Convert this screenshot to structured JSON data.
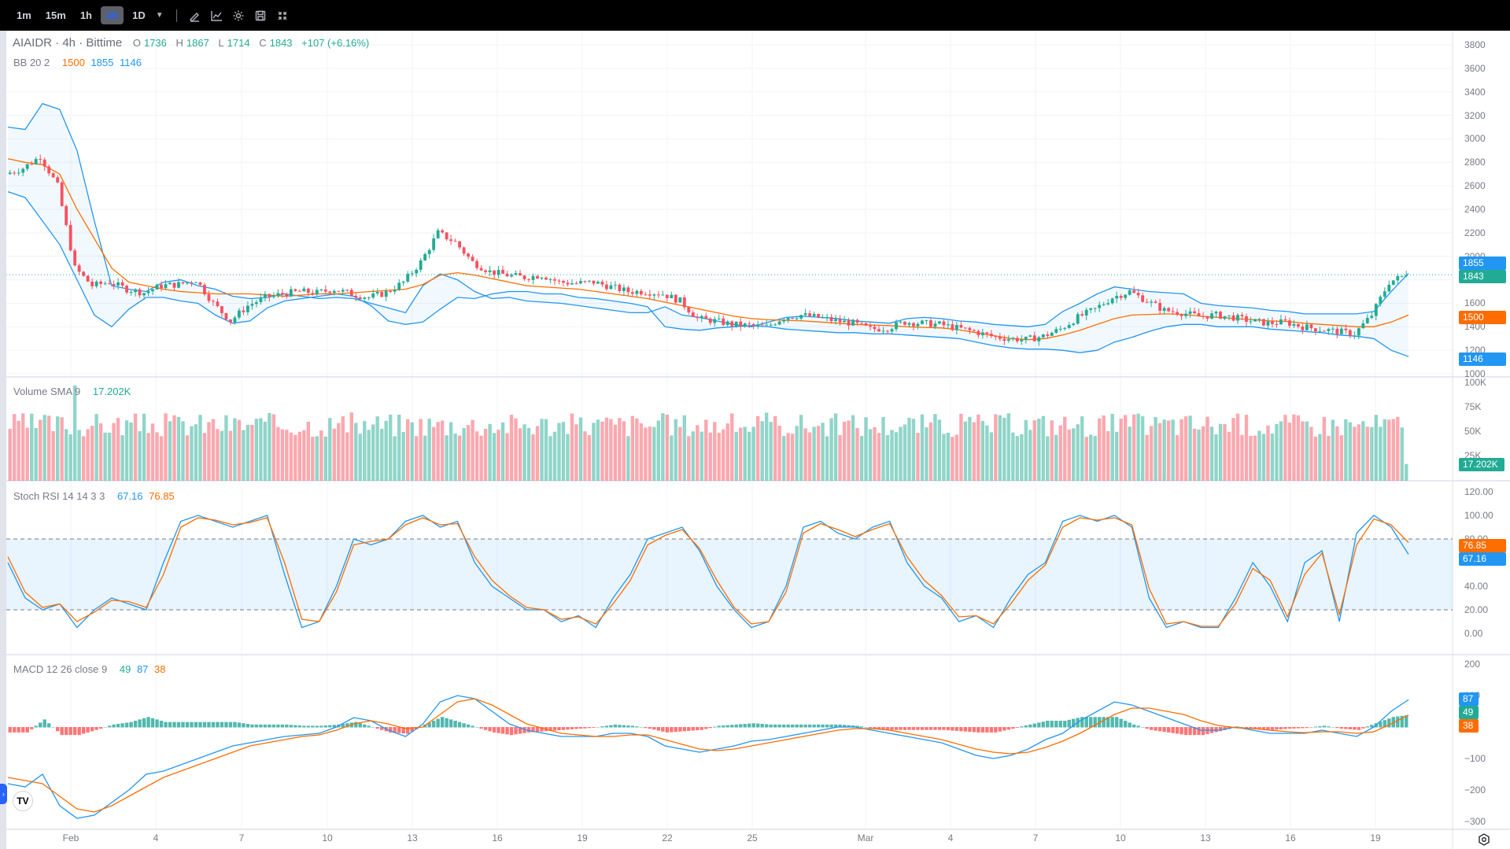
{
  "toolbar": {
    "timeframes": [
      "1m",
      "15m",
      "1h",
      "4h",
      "1D"
    ],
    "active_timeframe": "4h",
    "tools": [
      "draw-icon",
      "indicators-icon",
      "settings-icon",
      "save-icon",
      "collapse-icon"
    ]
  },
  "legend": {
    "symbol": "AIAIDR · 4h · Bittime",
    "o_label": "O",
    "o": "1736",
    "h_label": "H",
    "h": "1867",
    "l_label": "L",
    "l": "1714",
    "c_label": "C",
    "c": "1843",
    "change": "+107 (+6.16%)",
    "bb_title": "BB 20 2",
    "bb_basis": "1500",
    "bb_upper": "1855",
    "bb_lower": "1146",
    "vol_title": "Volume SMA 9",
    "vol_value": "17.202K",
    "stoch_title": "Stoch RSI 14 14 3 3",
    "stoch_k": "67.16",
    "stoch_d": "76.85",
    "macd_title": "MACD 12 26 close 9",
    "macd_hist": "49",
    "macd_line": "87",
    "macd_signal": "38"
  },
  "price_axis": [
    "3800",
    "3600",
    "3400",
    "3200",
    "3000",
    "2800",
    "2600",
    "2400",
    "2200",
    "2000",
    "1800",
    "1600",
    "1400",
    "1200",
    "1000"
  ],
  "volume_axis": [
    "100K",
    "75K",
    "50K",
    "25K"
  ],
  "stoch_axis": [
    "120.00",
    "100.00",
    "80.00",
    "60.00",
    "40.00",
    "20.00",
    "0.00"
  ],
  "macd_axis": [
    "200",
    "100",
    "0",
    "−100",
    "−200",
    "−300"
  ],
  "x_axis": [
    "Feb",
    "4",
    "7",
    "10",
    "13",
    "16",
    "19",
    "22",
    "25",
    "Mar",
    "4",
    "7",
    "10",
    "13",
    "16",
    "19"
  ],
  "price_labels": {
    "bb_upper": "1855",
    "close": "1843",
    "bb_basis": "1500",
    "bb_lower": "1146",
    "volume": "17.202K",
    "stoch_d": "76.85",
    "stoch_k": "67.16",
    "macd_line": "87",
    "macd_hist": "49",
    "macd_signal": "38"
  },
  "colors": {
    "up": "#22ab94",
    "down": "#f7525f",
    "bb": "#2196f3",
    "basis": "#ff6d00",
    "stoch_k": "#2196f3",
    "stoch_d": "#ff6d00"
  },
  "chart_data": [
    {
      "type": "candlestick",
      "title": "AIAIDR · 4h · Bittime",
      "ylim": [
        1000,
        3800
      ],
      "x": [
        "Feb",
        "4",
        "7",
        "10",
        "13",
        "16",
        "19",
        "22",
        "25",
        "Mar",
        "4",
        "7",
        "10",
        "13",
        "16",
        "19"
      ],
      "price_path": [
        2700,
        2750,
        2850,
        2600,
        1900,
        1750,
        1780,
        1720,
        1690,
        1750,
        1760,
        1800,
        1600,
        1450,
        1580,
        1650,
        1680,
        1700,
        1690,
        1720,
        1680,
        1650,
        1690,
        1780,
        1950,
        2200,
        2120,
        1950,
        1870,
        1840,
        1820,
        1840,
        1780,
        1770,
        1780,
        1740,
        1700,
        1700,
        1680,
        1620,
        1470,
        1450,
        1420,
        1410,
        1400,
        1480,
        1500,
        1480,
        1450,
        1430,
        1380,
        1390,
        1440,
        1430,
        1420,
        1390,
        1360,
        1320,
        1300,
        1290,
        1320,
        1380,
        1480,
        1550,
        1650,
        1700,
        1620,
        1540,
        1520,
        1490,
        1500,
        1480,
        1450,
        1430,
        1440,
        1400,
        1380,
        1360,
        1340,
        1500,
        1780,
        1843
      ],
      "bb_upper": [
        3100,
        3080,
        3300,
        3250,
        2900,
        2300,
        1750,
        1720,
        1700,
        1780,
        1800,
        1750,
        1720,
        1660,
        1640,
        1650,
        1680,
        1660,
        1640,
        1650,
        1640,
        1600,
        1560,
        1520,
        1750,
        1850,
        1800,
        1700,
        1640,
        1650,
        1620,
        1610,
        1600,
        1580,
        1560,
        1540,
        1520,
        1520,
        1570,
        1500,
        1480,
        1450,
        1420,
        1400,
        1440,
        1480,
        1490,
        1480,
        1470,
        1450,
        1440,
        1430,
        1470,
        1480,
        1470,
        1450,
        1440,
        1420,
        1410,
        1400,
        1420,
        1530,
        1600,
        1680,
        1740,
        1720,
        1700,
        1690,
        1680,
        1600,
        1580,
        1570,
        1560,
        1540,
        1530,
        1510,
        1510,
        1510,
        1510,
        1530,
        1700,
        1855
      ],
      "bb_basis": [
        2830,
        2800,
        2780,
        2700,
        2400,
        2150,
        1900,
        1780,
        1750,
        1720,
        1700,
        1690,
        1680,
        1680,
        1680,
        1670,
        1660,
        1670,
        1680,
        1680,
        1690,
        1700,
        1710,
        1720,
        1760,
        1840,
        1860,
        1840,
        1810,
        1780,
        1750,
        1740,
        1730,
        1720,
        1700,
        1680,
        1660,
        1640,
        1610,
        1580,
        1550,
        1520,
        1490,
        1470,
        1460,
        1455,
        1450,
        1440,
        1430,
        1420,
        1415,
        1410,
        1400,
        1395,
        1390,
        1375,
        1350,
        1325,
        1300,
        1290,
        1300,
        1330,
        1370,
        1420,
        1470,
        1500,
        1505,
        1510,
        1505,
        1490,
        1480,
        1470,
        1460,
        1450,
        1445,
        1430,
        1420,
        1410,
        1400,
        1400,
        1440,
        1500
      ],
      "bb_lower": [
        2550,
        2500,
        2300,
        2100,
        1800,
        1500,
        1400,
        1550,
        1650,
        1650,
        1620,
        1600,
        1500,
        1430,
        1450,
        1560,
        1620,
        1640,
        1660,
        1680,
        1660,
        1580,
        1450,
        1420,
        1440,
        1550,
        1650,
        1640,
        1680,
        1700,
        1700,
        1680,
        1680,
        1650,
        1640,
        1620,
        1600,
        1570,
        1400,
        1380,
        1370,
        1390,
        1400,
        1410,
        1400,
        1380,
        1370,
        1360,
        1350,
        1350,
        1340,
        1340,
        1330,
        1320,
        1310,
        1300,
        1270,
        1240,
        1220,
        1210,
        1210,
        1200,
        1180,
        1200,
        1270,
        1310,
        1360,
        1400,
        1420,
        1420,
        1400,
        1400,
        1400,
        1380,
        1370,
        1360,
        1350,
        1330,
        1320,
        1300,
        1200,
        1146
      ]
    },
    {
      "type": "bar",
      "title": "Volume SMA 9",
      "ylim": [
        0,
        100000
      ],
      "last_value": 17202
    },
    {
      "type": "line",
      "title": "Stoch RSI 14 14 3 3",
      "ylim": [
        0,
        120
      ],
      "bands": [
        20,
        80
      ],
      "k": [
        60,
        30,
        20,
        25,
        5,
        20,
        30,
        25,
        20,
        60,
        95,
        100,
        95,
        90,
        95,
        100,
        50,
        5,
        10,
        40,
        80,
        75,
        80,
        95,
        100,
        90,
        95,
        60,
        40,
        30,
        20,
        20,
        10,
        15,
        5,
        30,
        50,
        80,
        85,
        90,
        70,
        40,
        20,
        5,
        10,
        40,
        90,
        95,
        85,
        80,
        90,
        95,
        60,
        40,
        30,
        10,
        15,
        5,
        30,
        50,
        60,
        95,
        100,
        95,
        100,
        90,
        30,
        5,
        10,
        5,
        5,
        30,
        60,
        40,
        10,
        60,
        70,
        10,
        85,
        100,
        90,
        67
      ],
      "d": [
        65,
        35,
        22,
        25,
        10,
        18,
        28,
        27,
        22,
        50,
        90,
        98,
        96,
        92,
        94,
        98,
        60,
        12,
        10,
        35,
        75,
        78,
        80,
        92,
        98,
        92,
        93,
        65,
        45,
        32,
        22,
        20,
        12,
        14,
        8,
        25,
        45,
        75,
        83,
        88,
        72,
        45,
        22,
        8,
        10,
        35,
        85,
        93,
        88,
        82,
        88,
        93,
        65,
        45,
        32,
        14,
        15,
        8,
        25,
        45,
        58,
        90,
        98,
        96,
        98,
        92,
        38,
        8,
        10,
        6,
        6,
        25,
        55,
        45,
        14,
        50,
        68,
        16,
        75,
        97,
        92,
        77
      ]
    },
    {
      "type": "line",
      "title": "MACD 12 26 close 9",
      "ylim": [
        -300,
        200
      ],
      "macd": [
        -180,
        -190,
        -150,
        -250,
        -290,
        -280,
        -240,
        -200,
        -150,
        -140,
        -120,
        -100,
        -80,
        -60,
        -50,
        -40,
        -30,
        -25,
        -20,
        0,
        30,
        20,
        -10,
        -30,
        10,
        80,
        100,
        90,
        50,
        10,
        -10,
        -20,
        -30,
        -30,
        -30,
        -20,
        -20,
        -30,
        -60,
        -70,
        -80,
        -70,
        -60,
        -45,
        -40,
        -30,
        -20,
        -10,
        0,
        0,
        -10,
        -20,
        -30,
        -40,
        -50,
        -70,
        -90,
        -100,
        -90,
        -70,
        -40,
        -20,
        20,
        50,
        80,
        70,
        50,
        30,
        10,
        -10,
        -10,
        0,
        -10,
        -20,
        -20,
        -20,
        -10,
        -20,
        -30,
        0,
        50,
        87
      ],
      "signal": [
        -160,
        -170,
        -180,
        -220,
        -260,
        -270,
        -250,
        -220,
        -190,
        -160,
        -140,
        -120,
        -100,
        -80,
        -60,
        -50,
        -40,
        -30,
        -25,
        -10,
        10,
        20,
        10,
        -5,
        0,
        40,
        80,
        90,
        70,
        40,
        10,
        -5,
        -20,
        -25,
        -30,
        -30,
        -25,
        -25,
        -40,
        -55,
        -70,
        -75,
        -70,
        -60,
        -50,
        -40,
        -30,
        -20,
        -10,
        -5,
        -5,
        -10,
        -20,
        -30,
        -40,
        -55,
        -70,
        -80,
        -85,
        -80,
        -65,
        -45,
        -20,
        10,
        40,
        60,
        60,
        50,
        40,
        20,
        5,
        -2,
        -5,
        -10,
        -15,
        -18,
        -15,
        -15,
        -20,
        -15,
        10,
        38
      ]
    }
  ]
}
